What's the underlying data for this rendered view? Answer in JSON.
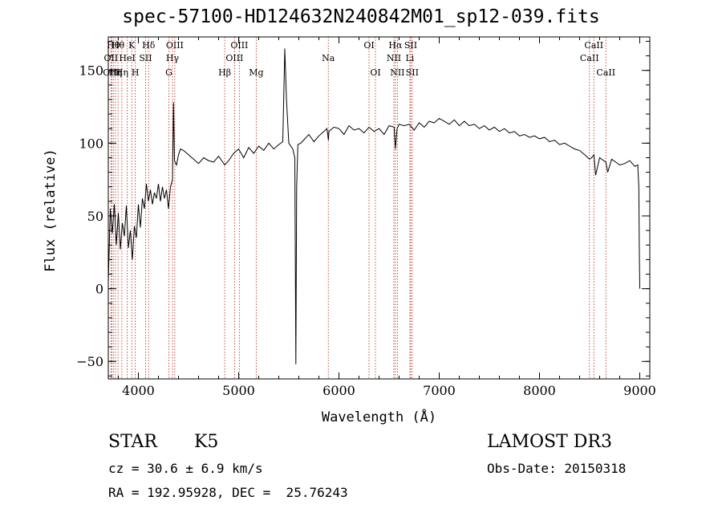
{
  "title": "spec-57100-HD124632N240842M01_sp12-039.fits",
  "info": {
    "object_class": "STAR",
    "subclass": "K5",
    "survey": "LAMOST DR3",
    "redshift_text": "cz = 30.6 ± 6.9 km/s",
    "obs_date_text": "Obs-Date: 20150318",
    "coords_text": "RA = 192.95928, DEC =  25.76243"
  },
  "chart_data": {
    "type": "line",
    "title": "spec-57100-HD124632N240842M01_sp12-039.fits",
    "xlabel": "Wavelength (Å)",
    "ylabel": "Flux (relative)",
    "xlim": [
      3700,
      9100
    ],
    "ylim": [
      -62,
      173
    ],
    "x_ticks": [
      4000,
      5000,
      6000,
      7000,
      8000,
      9000
    ],
    "y_ticks": [
      -50,
      0,
      50,
      100,
      150
    ],
    "grid": false,
    "line_color": "#000000",
    "marker_color": "#c0392b",
    "series": [
      {
        "x": [
          3700,
          3720,
          3740,
          3760,
          3780,
          3800,
          3820,
          3840,
          3860,
          3880,
          3900,
          3920,
          3940,
          3960,
          3980,
          4000,
          4020,
          4040,
          4060,
          4080,
          4100,
          4120,
          4140,
          4160,
          4180,
          4200,
          4220,
          4240,
          4260,
          4280,
          4300,
          4320,
          4340,
          4350,
          4360,
          4380,
          4400,
          4420,
          4450,
          4500,
          4550,
          4600,
          4650,
          4700,
          4750,
          4800,
          4861,
          4900,
          4950,
          5000,
          5050,
          5100,
          5150,
          5200,
          5250,
          5300,
          5350,
          5400,
          5440,
          5460,
          5477,
          5500,
          5540,
          5560,
          5570,
          5578,
          5590,
          5620,
          5660,
          5700,
          5750,
          5800,
          5850,
          5880,
          5895,
          5900,
          5950,
          6000,
          6050,
          6100,
          6150,
          6200,
          6250,
          6300,
          6350,
          6400,
          6450,
          6500,
          6550,
          6563,
          6580,
          6600,
          6650,
          6700,
          6750,
          6800,
          6850,
          6900,
          6950,
          7000,
          7050,
          7100,
          7150,
          7200,
          7250,
          7300,
          7350,
          7400,
          7450,
          7500,
          7550,
          7600,
          7650,
          7700,
          7750,
          7800,
          7850,
          7900,
          7950,
          8000,
          8050,
          8100,
          8150,
          8200,
          8250,
          8300,
          8350,
          8400,
          8450,
          8498,
          8520,
          8542,
          8560,
          8600,
          8640,
          8662,
          8680,
          8720,
          8760,
          8800,
          8850,
          8900,
          8950,
          8980,
          8990,
          8995,
          9000
        ],
        "y": [
          5,
          55,
          38,
          58,
          30,
          52,
          27,
          45,
          36,
          57,
          28,
          40,
          20,
          43,
          35,
          58,
          42,
          62,
          55,
          72,
          60,
          68,
          58,
          66,
          62,
          72,
          60,
          70,
          62,
          68,
          55,
          70,
          75,
          128,
          88,
          85,
          92,
          96,
          95,
          92,
          89,
          86,
          90,
          88,
          87,
          91,
          85,
          88,
          93,
          96,
          90,
          97,
          93,
          98,
          95,
          100,
          96,
          99,
          101,
          165,
          130,
          100,
          96,
          90,
          -52,
          70,
          99,
          100,
          103,
          106,
          101,
          105,
          108,
          110,
          102,
          108,
          111,
          110,
          106,
          112,
          109,
          110,
          107,
          111,
          108,
          110,
          106,
          112,
          111,
          96,
          110,
          113,
          112,
          113,
          109,
          114,
          111,
          115,
          114,
          117,
          115,
          113,
          116,
          112,
          115,
          112,
          113,
          110,
          112,
          109,
          111,
          108,
          110,
          107,
          108,
          105,
          106,
          104,
          105,
          103,
          104,
          101,
          102,
          99,
          100,
          98,
          96,
          95,
          92,
          89,
          90,
          92,
          78,
          90,
          88,
          87,
          80,
          89,
          87,
          85,
          86,
          88,
          84,
          85,
          70,
          30,
          0
        ]
      }
    ],
    "lines": [
      {
        "x": 3734,
        "label": "OIII",
        "row": 2
      },
      {
        "x": 3750,
        "label": "Hθ",
        "row": 0
      },
      {
        "x": 3771,
        "label": "Hη",
        "row": 2
      },
      {
        "x": 3727,
        "label": "OII",
        "row": 1
      },
      {
        "x": 3797,
        "label": "Hθ",
        "row": 0
      },
      {
        "x": 3835,
        "label": "Hη",
        "row": 2
      },
      {
        "x": 3889,
        "label": "HeI",
        "row": 1
      },
      {
        "x": 3934,
        "label": "K",
        "row": 0
      },
      {
        "x": 3969,
        "label": "H",
        "row": 2
      },
      {
        "x": 4072,
        "label": "SII",
        "row": 1
      },
      {
        "x": 4102,
        "label": "Hδ",
        "row": 0
      },
      {
        "x": 4304,
        "label": "G",
        "row": 2
      },
      {
        "x": 4340,
        "label": "Hγ",
        "row": 1
      },
      {
        "x": 4363,
        "label": "OIII",
        "row": 0
      },
      {
        "x": 4861,
        "label": "Hβ",
        "row": 2
      },
      {
        "x": 4959,
        "label": "OIII",
        "row": 1
      },
      {
        "x": 5007,
        "label": "OIII",
        "row": 0
      },
      {
        "x": 5175,
        "label": "Mg",
        "row": 2
      },
      {
        "x": 5894,
        "label": "Na",
        "row": 1
      },
      {
        "x": 6300,
        "label": "OI",
        "row": 0
      },
      {
        "x": 6364,
        "label": "OI",
        "row": 2
      },
      {
        "x": 6548,
        "label": "NII",
        "row": 1
      },
      {
        "x": 6563,
        "label": "Hα",
        "row": 0
      },
      {
        "x": 6583,
        "label": "NII",
        "row": 2
      },
      {
        "x": 6707,
        "label": "Li",
        "row": 1
      },
      {
        "x": 6716,
        "label": "SII",
        "row": 0
      },
      {
        "x": 6731,
        "label": "SII",
        "row": 2
      },
      {
        "x": 8498,
        "label": "CaII",
        "row": 1
      },
      {
        "x": 8542,
        "label": "CaII",
        "row": 0
      },
      {
        "x": 8662,
        "label": "CaII",
        "row": 2
      }
    ]
  }
}
